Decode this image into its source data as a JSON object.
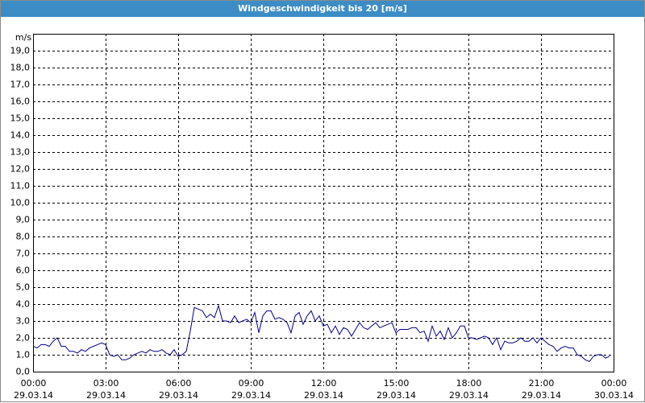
{
  "chart_data": {
    "type": "line",
    "title": "Windgeschwindigkeit bis 20 [m/s]",
    "y_label": "m/s",
    "color": "#00008b",
    "grid": true,
    "x": [
      0,
      10,
      20,
      30,
      40,
      50,
      60,
      70,
      80,
      90,
      100,
      110,
      120,
      130,
      140,
      150,
      160,
      170,
      180,
      190,
      200,
      210,
      220,
      230,
      240,
      250,
      260,
      270,
      280,
      290,
      300,
      310,
      320,
      330,
      340,
      350,
      360,
      370,
      380,
      390,
      400,
      410,
      420,
      430,
      440,
      450,
      460,
      470,
      480,
      490,
      500,
      510,
      520,
      530,
      540,
      550,
      560,
      570,
      580,
      590,
      600,
      610,
      620,
      630,
      640,
      650,
      660,
      670,
      680,
      690,
      700,
      710,
      720,
      730,
      740,
      750,
      760,
      770,
      780,
      790,
      800,
      810,
      820,
      830,
      840,
      850,
      860,
      870,
      880,
      890,
      900,
      910,
      920,
      930,
      940,
      950,
      960,
      970,
      980,
      990,
      1000,
      1010,
      1020,
      1030,
      1040,
      1050,
      1060,
      1070,
      1080,
      1090,
      1100,
      1110,
      1120,
      1130,
      1140,
      1150,
      1160,
      1170,
      1180,
      1190,
      1200,
      1210,
      1220,
      1230,
      1240,
      1250,
      1260,
      1270,
      1280,
      1290,
      1300,
      1310,
      1320,
      1330,
      1340,
      1350,
      1360,
      1370,
      1380,
      1390,
      1400,
      1410,
      1420,
      1430
    ],
    "values": [
      1.5,
      1.4,
      1.6,
      1.6,
      1.5,
      1.8,
      2.0,
      1.5,
      1.5,
      1.2,
      1.2,
      1.1,
      1.3,
      1.2,
      1.4,
      1.5,
      1.6,
      1.7,
      1.6,
      1.0,
      0.9,
      1.0,
      0.7,
      0.7,
      0.8,
      1.0,
      1.1,
      1.2,
      1.1,
      1.3,
      1.2,
      1.2,
      1.3,
      1.1,
      1.0,
      1.3,
      0.9,
      1.0,
      1.2,
      2.4,
      3.8,
      3.7,
      3.6,
      3.2,
      3.4,
      3.2,
      3.9,
      3.0,
      3.0,
      2.9,
      3.3,
      2.9,
      3.0,
      3.1,
      2.9,
      3.5,
      2.3,
      3.3,
      3.6,
      3.6,
      3.1,
      3.2,
      3.1,
      2.9,
      2.3,
      3.3,
      3.5,
      2.8,
      3.3,
      3.6,
      3.0,
      3.3,
      2.7,
      2.8,
      2.3,
      2.7,
      2.2,
      2.6,
      2.5,
      2.1,
      2.5,
      2.9,
      2.6,
      2.5,
      2.7,
      2.9,
      2.6,
      2.7,
      2.8,
      2.9,
      2.3,
      2.5,
      2.5,
      2.5,
      2.6,
      2.6,
      2.3,
      2.4,
      1.8,
      2.7,
      2.1,
      2.4,
      1.9,
      2.6,
      2.0,
      2.3,
      2.7,
      2.7,
      2.0,
      2.0,
      1.9,
      2.0,
      2.1,
      2.0,
      1.6,
      2.0,
      1.3,
      1.8,
      1.7,
      1.7,
      1.8,
      2.0,
      1.8,
      1.8,
      2.0,
      1.7,
      2.0,
      1.8,
      1.6,
      1.5,
      1.2,
      1.4,
      1.5,
      1.4,
      1.4,
      1.0,
      0.9,
      0.7,
      0.6,
      0.9,
      1.0,
      1.0,
      0.8,
      0.9
    ],
    "xlim": [
      0,
      1440
    ],
    "xticks": [
      {
        "value": 0,
        "label": "00:00",
        "date": "29.03.14"
      },
      {
        "value": 180,
        "label": "03:00",
        "date": "29.03.14"
      },
      {
        "value": 360,
        "label": "06:00",
        "date": "29.03.14"
      },
      {
        "value": 540,
        "label": "09:00",
        "date": "29.03.14"
      },
      {
        "value": 720,
        "label": "12:00",
        "date": "29.03.14"
      },
      {
        "value": 900,
        "label": "15:00",
        "date": "29.03.14"
      },
      {
        "value": 1080,
        "label": "18:00",
        "date": "29.03.14"
      },
      {
        "value": 1260,
        "label": "21:00",
        "date": "29.03.14"
      },
      {
        "value": 1440,
        "label": "00:00",
        "date": "30.03.14"
      }
    ],
    "ylim": [
      0,
      20
    ],
    "yticks": [
      {
        "value": 0,
        "label": "0,0"
      },
      {
        "value": 1,
        "label": "1,0"
      },
      {
        "value": 2,
        "label": "2,0"
      },
      {
        "value": 3,
        "label": "3,0"
      },
      {
        "value": 4,
        "label": "4,0"
      },
      {
        "value": 5,
        "label": "5,0"
      },
      {
        "value": 6,
        "label": "6,0"
      },
      {
        "value": 7,
        "label": "7,0"
      },
      {
        "value": 8,
        "label": "8,0"
      },
      {
        "value": 9,
        "label": "9,0"
      },
      {
        "value": 10,
        "label": "10,0"
      },
      {
        "value": 11,
        "label": "11,0"
      },
      {
        "value": 12,
        "label": "12,0"
      },
      {
        "value": 13,
        "label": "13,0"
      },
      {
        "value": 14,
        "label": "14,0"
      },
      {
        "value": 15,
        "label": "15,0"
      },
      {
        "value": 16,
        "label": "16,0"
      },
      {
        "value": 17,
        "label": "17,0"
      },
      {
        "value": 18,
        "label": "18,0"
      },
      {
        "value": 19,
        "label": "19,0"
      }
    ]
  }
}
